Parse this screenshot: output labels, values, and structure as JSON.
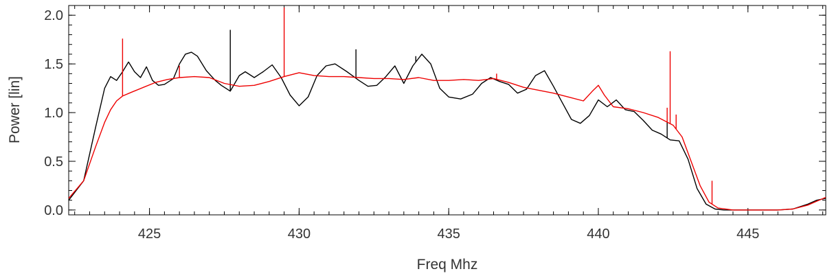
{
  "chart_data": {
    "type": "line",
    "title": "",
    "xlabel": "Freq Mhz",
    "ylabel": "Power [lin]",
    "xlim": [
      422.3,
      447.6
    ],
    "ylim": [
      -0.05,
      2.1
    ],
    "x_ticks": [
      425,
      430,
      435,
      440,
      445
    ],
    "x_tick_labels": [
      "425",
      "430",
      "435",
      "440",
      "445"
    ],
    "x_minor_step": 0.5,
    "y_ticks": [
      0.0,
      0.5,
      1.0,
      1.5,
      2.0
    ],
    "y_tick_labels": [
      "0.0",
      "0.5",
      "1.0",
      "1.5",
      "2.0"
    ],
    "y_minor_step": 0.1,
    "grid": false,
    "series": [
      {
        "color": "#000000",
        "x": [
          422.3,
          422.8,
          423.2,
          423.5,
          423.7,
          423.9,
          424.1,
          424.3,
          424.5,
          424.7,
          424.9,
          425.1,
          425.3,
          425.5,
          425.8,
          426.0,
          426.2,
          426.4,
          426.6,
          426.9,
          427.2,
          427.4,
          427.7,
          428.0,
          428.2,
          428.5,
          428.8,
          429.1,
          429.4,
          429.7,
          430.0,
          430.3,
          430.6,
          430.9,
          431.2,
          431.6,
          432.0,
          432.3,
          432.6,
          432.9,
          433.2,
          433.5,
          433.8,
          434.1,
          434.4,
          434.7,
          435.0,
          435.4,
          435.8,
          436.1,
          436.4,
          436.7,
          437.0,
          437.3,
          437.6,
          437.9,
          438.2,
          438.5,
          438.8,
          439.1,
          439.4,
          439.7,
          440.0,
          440.3,
          440.6,
          440.9,
          441.2,
          441.5,
          441.8,
          442.1,
          442.4,
          442.7,
          443.0,
          443.3,
          443.6,
          443.9,
          444.2,
          444.6,
          445.0,
          445.5,
          446.0,
          446.5,
          447.0,
          447.3,
          447.6
        ],
        "y": [
          0.1,
          0.3,
          0.85,
          1.25,
          1.37,
          1.33,
          1.42,
          1.52,
          1.42,
          1.36,
          1.47,
          1.33,
          1.28,
          1.29,
          1.35,
          1.5,
          1.6,
          1.62,
          1.58,
          1.43,
          1.33,
          1.28,
          1.22,
          1.38,
          1.42,
          1.36,
          1.42,
          1.49,
          1.36,
          1.18,
          1.07,
          1.16,
          1.38,
          1.48,
          1.5,
          1.42,
          1.33,
          1.27,
          1.28,
          1.37,
          1.48,
          1.3,
          1.48,
          1.6,
          1.5,
          1.25,
          1.16,
          1.14,
          1.19,
          1.3,
          1.36,
          1.32,
          1.29,
          1.2,
          1.24,
          1.38,
          1.43,
          1.27,
          1.1,
          0.93,
          0.89,
          0.97,
          1.13,
          1.06,
          1.13,
          1.03,
          1.01,
          0.92,
          0.82,
          0.78,
          0.72,
          0.71,
          0.52,
          0.22,
          0.06,
          0.01,
          0.0,
          0.0,
          0.0,
          0.0,
          0.0,
          0.01,
          0.06,
          0.1,
          0.12
        ],
        "spikes": [
          {
            "x": 427.7,
            "y": 1.85
          },
          {
            "x": 431.9,
            "y": 1.65
          },
          {
            "x": 433.9,
            "y": 1.58
          },
          {
            "x": 437.6,
            "y": 1.25
          },
          {
            "x": 442.3,
            "y": 0.9
          }
        ]
      },
      {
        "color": "#ee0000",
        "x": [
          422.3,
          422.8,
          423.2,
          423.5,
          423.7,
          423.9,
          424.1,
          424.4,
          424.8,
          425.2,
          425.6,
          426.0,
          426.5,
          427.0,
          427.5,
          428.0,
          428.5,
          429.0,
          429.5,
          430.0,
          430.5,
          431.0,
          431.5,
          432.0,
          432.5,
          433.0,
          433.5,
          434.0,
          434.5,
          435.0,
          435.5,
          436.0,
          436.5,
          437.0,
          437.5,
          438.0,
          438.5,
          439.0,
          439.5,
          439.8,
          440.0,
          440.2,
          440.5,
          441.0,
          441.5,
          442.0,
          442.5,
          442.8,
          443.1,
          443.4,
          443.7,
          444.0,
          444.5,
          445.0,
          445.5,
          446.0,
          446.5,
          447.0,
          447.3,
          447.6
        ],
        "y": [
          0.12,
          0.3,
          0.65,
          0.9,
          1.03,
          1.12,
          1.17,
          1.21,
          1.26,
          1.31,
          1.34,
          1.36,
          1.37,
          1.36,
          1.3,
          1.27,
          1.28,
          1.32,
          1.37,
          1.41,
          1.38,
          1.37,
          1.37,
          1.36,
          1.35,
          1.35,
          1.34,
          1.36,
          1.33,
          1.33,
          1.34,
          1.33,
          1.35,
          1.31,
          1.26,
          1.23,
          1.2,
          1.16,
          1.12,
          1.22,
          1.28,
          1.18,
          1.06,
          1.04,
          1.0,
          0.95,
          0.87,
          0.75,
          0.5,
          0.25,
          0.08,
          0.02,
          0.0,
          0.0,
          0.0,
          0.0,
          0.01,
          0.05,
          0.09,
          0.13
        ],
        "spikes": [
          {
            "x": 424.1,
            "y": 1.76
          },
          {
            "x": 426.0,
            "y": 1.48
          },
          {
            "x": 429.5,
            "y": 2.08
          },
          {
            "x": 436.6,
            "y": 1.4
          },
          {
            "x": 442.4,
            "y": 1.63
          },
          {
            "x": 442.3,
            "y": 1.05
          },
          {
            "x": 442.6,
            "y": 0.98
          },
          {
            "x": 443.8,
            "y": 0.3
          }
        ]
      }
    ]
  }
}
